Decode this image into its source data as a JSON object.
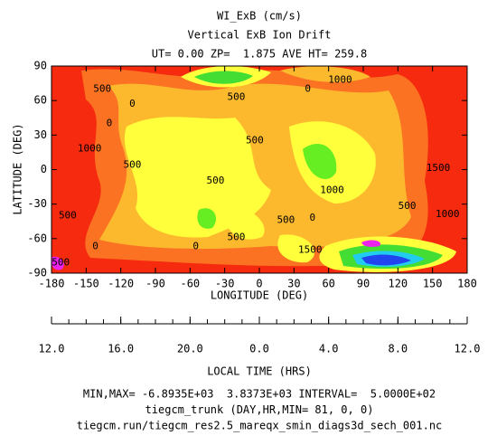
{
  "chart_data": {
    "type": "contour",
    "title": [
      "WI_ExB (cm/s)",
      "Vertical ExB Ion Drift",
      "UT= 0.00 ZP=  1.875 AVE HT= 259.8"
    ],
    "xlabel": "LONGITUDE (DEG)",
    "ylabel": "LATITUDE (DEG)",
    "xlim": [
      -180,
      180
    ],
    "ylim": [
      -90,
      90
    ],
    "xticks": [
      -180,
      -150,
      -120,
      -90,
      -60,
      -30,
      0,
      30,
      60,
      90,
      120,
      150,
      180
    ],
    "yticks": [
      -90,
      -60,
      -30,
      0,
      30,
      60,
      90
    ],
    "lt_label": "LOCAL TIME (HRS)",
    "lt_ticks": [
      {
        "value": 12,
        "label": "12.0"
      },
      {
        "value": 16,
        "label": "16.0"
      },
      {
        "value": 20,
        "label": "20.0"
      },
      {
        "value": 0,
        "label": "0.0"
      },
      {
        "value": 4,
        "label": "4.0"
      },
      {
        "value": 8,
        "label": "8.0"
      },
      {
        "value": 12,
        "label": "12.0"
      }
    ],
    "contour_labels": [
      {
        "label": "500",
        "x": -136,
        "y": 70
      },
      {
        "label": "0",
        "x": -110,
        "y": 57
      },
      {
        "label": "0",
        "x": -130,
        "y": 40
      },
      {
        "label": "1000",
        "x": -147,
        "y": 18
      },
      {
        "label": "500",
        "x": -110,
        "y": 4
      },
      {
        "label": "500",
        "x": -166,
        "y": -40
      },
      {
        "label": "0",
        "x": -142,
        "y": -67
      },
      {
        "label": "500",
        "x": -172,
        "y": -81
      },
      {
        "label": "500",
        "x": -20,
        "y": 63
      },
      {
        "label": "0",
        "x": 42,
        "y": 70
      },
      {
        "label": "1000",
        "x": 70,
        "y": 78
      },
      {
        "label": "500",
        "x": -4,
        "y": 25
      },
      {
        "label": "500",
        "x": -38,
        "y": -10
      },
      {
        "label": "1000",
        "x": 63,
        "y": -18
      },
      {
        "label": "500",
        "x": 23,
        "y": -44
      },
      {
        "label": "0",
        "x": 46,
        "y": -42
      },
      {
        "label": "500",
        "x": -20,
        "y": -59
      },
      {
        "label": "0",
        "x": -55,
        "y": -67
      },
      {
        "label": "1500",
        "x": 44,
        "y": -70
      },
      {
        "label": "1500",
        "x": 155,
        "y": 1
      },
      {
        "label": "1000",
        "x": 163,
        "y": -39
      },
      {
        "label": "500",
        "x": 128,
        "y": -32
      }
    ],
    "footer": [
      "MIN,MAX= -6.8935E+03  3.8373E+03 INTERVAL=  5.0000E+02",
      "tiegcm_trunk (DAY,HR,MIN= 81, 0, 0)",
      "tiegcm.run/tiegcm_res2.5_mareqx_smin_diags3d_sech_001.nc"
    ]
  }
}
